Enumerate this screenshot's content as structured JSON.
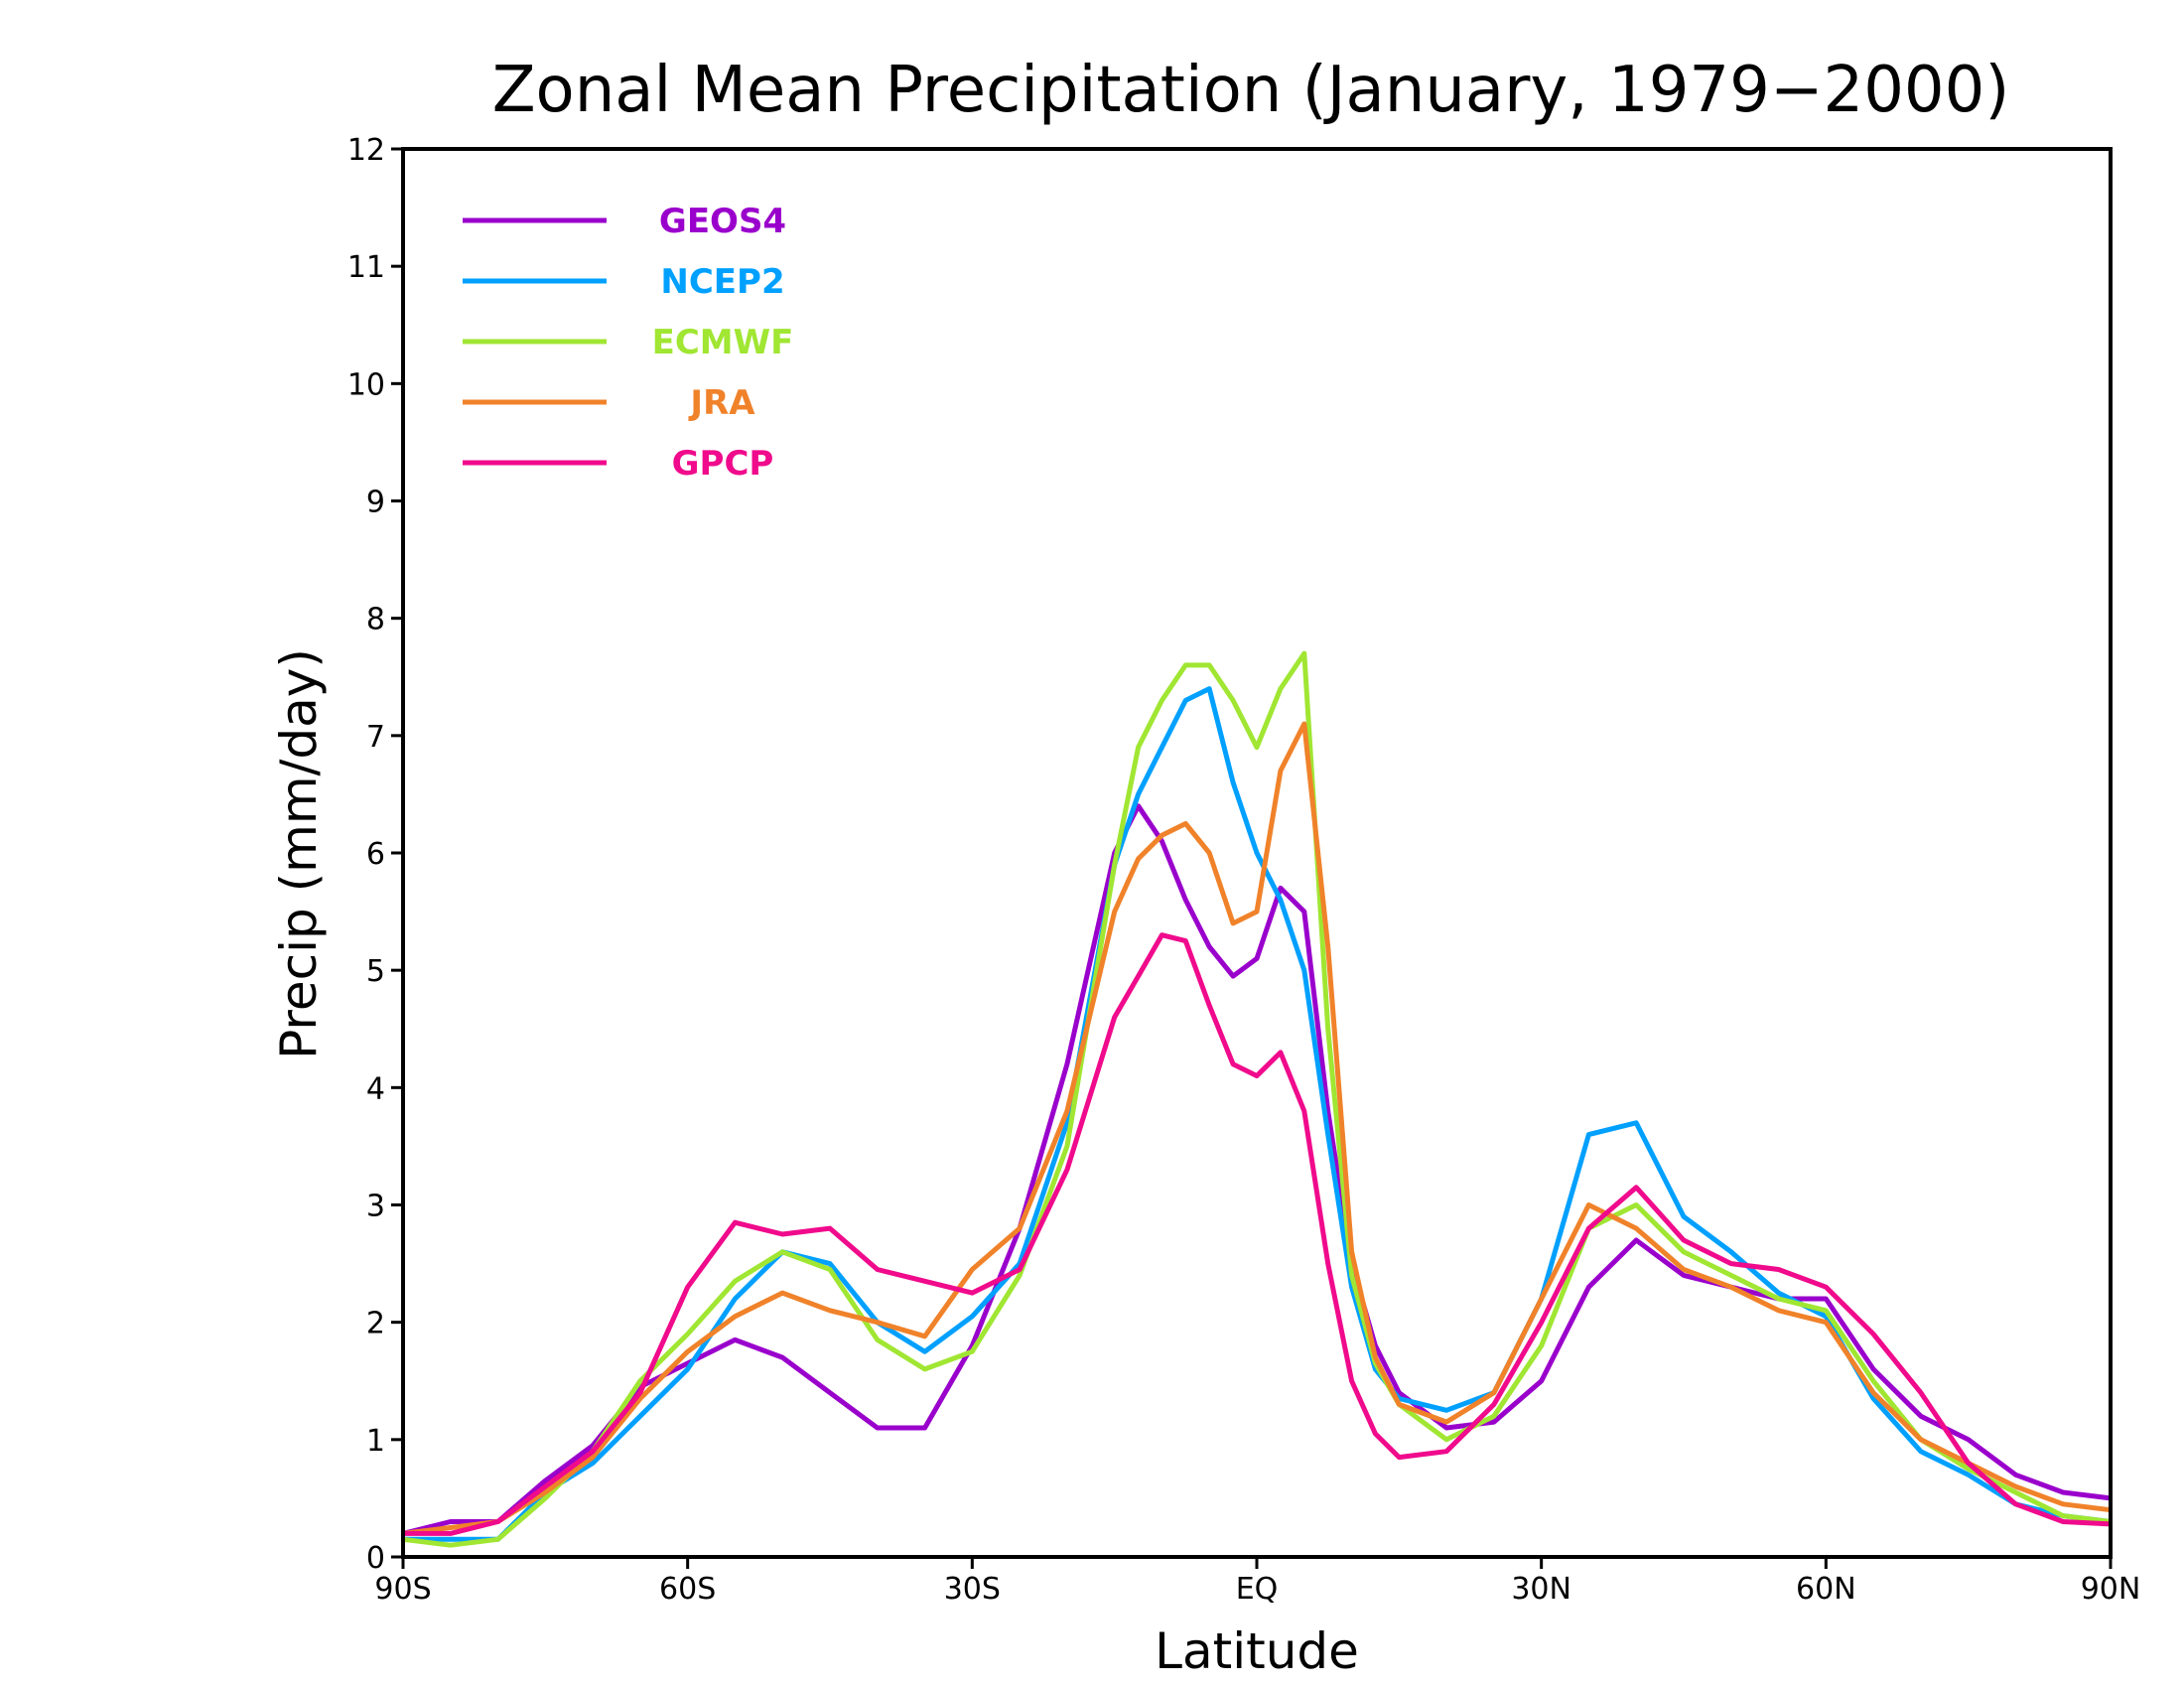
{
  "chart_data": {
    "type": "line",
    "title": "Zonal Mean Precipitation (January, 1979−2000)",
    "xlabel": "Latitude",
    "ylabel": "Precip (mm/day)",
    "xlim": [
      -90,
      90
    ],
    "ylim": [
      0,
      12
    ],
    "grid": false,
    "legend_position": "top-left",
    "x_ticks": [
      {
        "value": -90,
        "label": "90S"
      },
      {
        "value": -60,
        "label": "60S"
      },
      {
        "value": -30,
        "label": "30S"
      },
      {
        "value": 0,
        "label": "EQ"
      },
      {
        "value": 30,
        "label": "30N"
      },
      {
        "value": 60,
        "label": "60N"
      },
      {
        "value": 90,
        "label": "90N"
      }
    ],
    "y_ticks": [
      "0",
      "1",
      "2",
      "3",
      "4",
      "5",
      "6",
      "7",
      "8",
      "9",
      "10",
      "11",
      "12"
    ],
    "x": [
      -90,
      -85,
      -80,
      -75,
      -70,
      -65,
      -60,
      -55,
      -50,
      -45,
      -40,
      -35,
      -30,
      -25,
      -20,
      -15,
      -12.5,
      -10,
      -7.5,
      -5,
      -2.5,
      0,
      2.5,
      5,
      7.5,
      10,
      12.5,
      15,
      20,
      25,
      30,
      35,
      40,
      45,
      50,
      55,
      60,
      65,
      70,
      75,
      80,
      85,
      90
    ],
    "series": [
      {
        "name": "GEOS4",
        "color": "#9a00cc",
        "values": [
          0.2,
          0.3,
          0.3,
          0.65,
          0.95,
          1.45,
          1.65,
          1.85,
          1.7,
          1.4,
          1.1,
          1.1,
          1.8,
          2.8,
          4.2,
          6.0,
          6.4,
          6.1,
          5.6,
          5.2,
          4.95,
          5.1,
          5.7,
          5.5,
          3.8,
          2.5,
          1.8,
          1.4,
          1.1,
          1.15,
          1.5,
          2.3,
          2.7,
          2.4,
          2.3,
          2.2,
          2.2,
          1.6,
          1.2,
          1.0,
          0.7,
          0.55,
          0.5
        ]
      },
      {
        "name": "NCEP2",
        "color": "#00a0ff",
        "values": [
          0.15,
          0.15,
          0.15,
          0.55,
          0.8,
          1.2,
          1.6,
          2.2,
          2.6,
          2.5,
          2.0,
          1.75,
          2.05,
          2.5,
          3.7,
          5.9,
          6.5,
          6.9,
          7.3,
          7.4,
          6.6,
          6.0,
          5.6,
          5.0,
          3.6,
          2.3,
          1.6,
          1.35,
          1.25,
          1.4,
          2.2,
          3.6,
          3.7,
          2.9,
          2.6,
          2.25,
          2.05,
          1.35,
          0.9,
          0.7,
          0.45,
          0.35,
          0.3
        ]
      },
      {
        "name": "ECMWF",
        "color": "#a0e632",
        "values": [
          0.15,
          0.1,
          0.15,
          0.5,
          0.9,
          1.5,
          1.9,
          2.35,
          2.6,
          2.45,
          1.85,
          1.6,
          1.75,
          2.4,
          3.5,
          5.9,
          6.9,
          7.3,
          7.6,
          7.6,
          7.3,
          6.9,
          7.4,
          7.7,
          4.5,
          2.4,
          1.65,
          1.3,
          1.0,
          1.2,
          1.8,
          2.8,
          3.0,
          2.6,
          2.4,
          2.2,
          2.1,
          1.5,
          1.0,
          0.75,
          0.55,
          0.35,
          0.3
        ]
      },
      {
        "name": "JRA",
        "color": "#f0822a",
        "values": [
          0.2,
          0.25,
          0.3,
          0.55,
          0.85,
          1.35,
          1.75,
          2.05,
          2.25,
          2.1,
          2.0,
          1.88,
          2.45,
          2.8,
          3.8,
          5.5,
          5.95,
          6.15,
          6.25,
          6.0,
          5.4,
          5.5,
          6.7,
          7.1,
          5.2,
          2.6,
          1.7,
          1.3,
          1.15,
          1.4,
          2.2,
          3.0,
          2.8,
          2.45,
          2.3,
          2.1,
          2.0,
          1.4,
          1.0,
          0.8,
          0.6,
          0.45,
          0.4
        ]
      },
      {
        "name": "GPCP",
        "color": "#f00a8c",
        "values": [
          0.2,
          0.2,
          0.3,
          0.6,
          0.9,
          1.4,
          2.3,
          2.85,
          2.75,
          2.8,
          2.45,
          2.35,
          2.25,
          2.45,
          3.3,
          4.6,
          4.95,
          5.3,
          5.25,
          4.7,
          4.2,
          4.1,
          4.3,
          3.8,
          2.5,
          1.5,
          1.05,
          0.85,
          0.9,
          1.3,
          2.0,
          2.8,
          3.15,
          2.7,
          2.5,
          2.45,
          2.3,
          1.9,
          1.4,
          0.8,
          0.45,
          0.3,
          0.28
        ]
      }
    ]
  }
}
